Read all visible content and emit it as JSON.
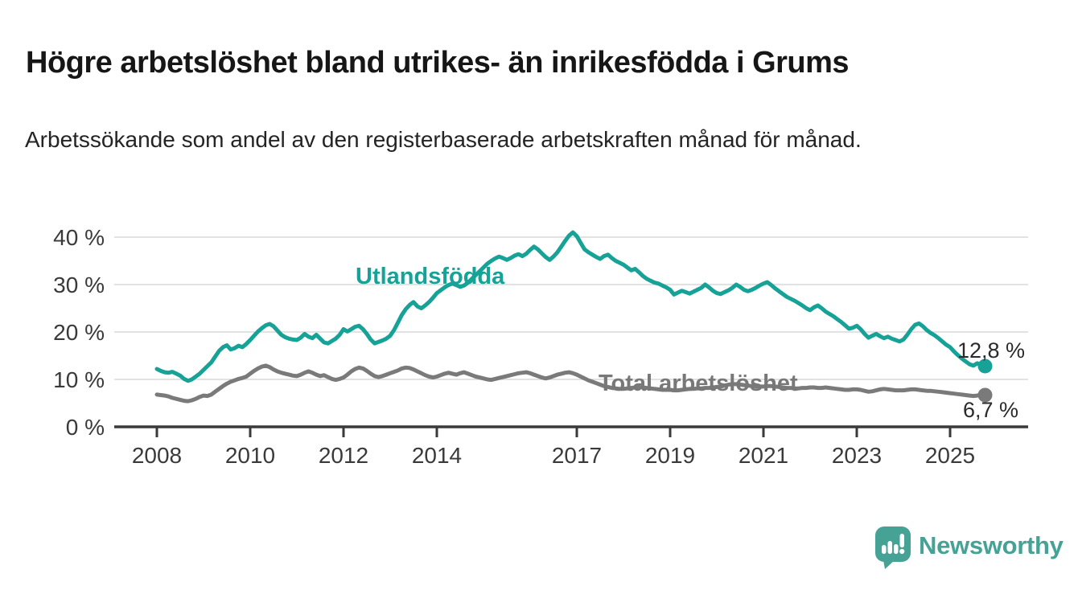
{
  "chart_data": {
    "type": "line",
    "title": "Högre arbetslöshet bland utrikes- än inrikesfödda i Grums",
    "subtitle": "Arbetssökande som andel av den registerbaserade arbetskraften månad för månad.",
    "unit": "%",
    "x_start_year": 2008,
    "frequency": "monthly",
    "x_ticks": [
      2008,
      2010,
      2012,
      2014,
      2017,
      2019,
      2021,
      2023,
      2025
    ],
    "y_ticks": [
      0,
      10,
      20,
      30,
      40
    ],
    "ylim": [
      0,
      43
    ],
    "grid": "horizontal",
    "legend_position": "inline-labels",
    "series": [
      {
        "name": "Utlandsfödda",
        "color": "#16a296",
        "end_label": "12,8 %",
        "end_value": 12.8,
        "values": [
          12.2,
          11.8,
          11.5,
          11.4,
          11.6,
          11.2,
          10.8,
          10.1,
          9.7,
          10.0,
          10.6,
          11.2,
          12.0,
          12.8,
          13.6,
          14.8,
          16.0,
          16.8,
          17.2,
          16.3,
          16.6,
          17.1,
          16.8,
          17.5,
          18.3,
          19.2,
          20.1,
          20.8,
          21.4,
          21.7,
          21.2,
          20.3,
          19.4,
          18.9,
          18.6,
          18.4,
          18.3,
          18.8,
          19.6,
          19.0,
          18.7,
          19.4,
          18.6,
          17.8,
          17.6,
          18.1,
          18.6,
          19.4,
          20.6,
          20.1,
          20.6,
          21.1,
          21.3,
          20.6,
          19.6,
          18.4,
          17.6,
          17.9,
          18.2,
          18.6,
          19.2,
          20.4,
          22.0,
          23.6,
          24.8,
          25.7,
          26.3,
          25.4,
          25.0,
          25.6,
          26.3,
          27.2,
          28.2,
          28.8,
          29.4,
          29.9,
          30.2,
          29.9,
          29.5,
          29.8,
          30.4,
          31.2,
          32.0,
          32.8,
          33.6,
          34.4,
          35.0,
          35.5,
          35.9,
          35.6,
          35.2,
          35.6,
          36.1,
          36.4,
          36.0,
          36.5,
          37.3,
          38.0,
          37.4,
          36.6,
          35.8,
          35.2,
          35.9,
          36.8,
          38.0,
          39.2,
          40.3,
          41.0,
          40.2,
          38.8,
          37.4,
          36.8,
          36.3,
          35.8,
          35.4,
          36.0,
          36.3,
          35.6,
          35.0,
          34.6,
          34.2,
          33.6,
          33.0,
          33.3,
          32.6,
          31.8,
          31.2,
          30.8,
          30.4,
          30.2,
          29.8,
          29.4,
          28.9,
          27.9,
          28.3,
          28.7,
          28.4,
          28.1,
          28.5,
          28.9,
          29.3,
          30.0,
          29.4,
          28.7,
          28.2,
          28.0,
          28.4,
          28.8,
          29.3,
          30.0,
          29.5,
          28.9,
          28.6,
          28.9,
          29.3,
          29.8,
          30.2,
          30.5,
          29.9,
          29.2,
          28.6,
          28.0,
          27.4,
          27.0,
          26.6,
          26.1,
          25.6,
          25.0,
          24.6,
          25.2,
          25.6,
          25.0,
          24.3,
          23.8,
          23.3,
          22.7,
          22.1,
          21.4,
          20.7,
          20.9,
          21.3,
          20.6,
          19.6,
          18.8,
          19.2,
          19.6,
          19.1,
          18.7,
          19.0,
          18.6,
          18.3,
          18.0,
          18.4,
          19.4,
          20.6,
          21.5,
          21.8,
          21.2,
          20.4,
          19.8,
          19.3,
          18.7,
          18.0,
          17.3,
          16.8,
          15.9,
          15.1,
          14.4,
          13.8,
          13.2,
          12.9,
          13.4,
          13.0,
          12.8
        ]
      },
      {
        "name": "Total arbetslöshet",
        "color": "#7a7a7a",
        "end_label": "6,7 %",
        "end_value": 6.7,
        "values": [
          6.8,
          6.7,
          6.6,
          6.4,
          6.1,
          5.9,
          5.7,
          5.5,
          5.4,
          5.6,
          5.9,
          6.3,
          6.6,
          6.5,
          6.8,
          7.4,
          8.0,
          8.6,
          9.1,
          9.5,
          9.8,
          10.1,
          10.3,
          10.6,
          11.2,
          11.8,
          12.3,
          12.7,
          12.9,
          12.6,
          12.1,
          11.7,
          11.4,
          11.2,
          11.0,
          10.8,
          10.7,
          11.0,
          11.4,
          11.7,
          11.4,
          11.0,
          10.7,
          10.9,
          10.5,
          10.1,
          9.9,
          10.1,
          10.4,
          11.0,
          11.7,
          12.2,
          12.5,
          12.3,
          11.8,
          11.2,
          10.7,
          10.5,
          10.7,
          11.0,
          11.3,
          11.6,
          11.9,
          12.3,
          12.5,
          12.4,
          12.1,
          11.7,
          11.3,
          10.9,
          10.6,
          10.4,
          10.6,
          10.9,
          11.2,
          11.4,
          11.2,
          11.0,
          11.3,
          11.5,
          11.2,
          10.9,
          10.6,
          10.4,
          10.2,
          10.0,
          9.9,
          10.1,
          10.3,
          10.5,
          10.7,
          10.9,
          11.1,
          11.3,
          11.4,
          11.5,
          11.3,
          11.0,
          10.7,
          10.4,
          10.2,
          10.4,
          10.7,
          11.0,
          11.2,
          11.4,
          11.5,
          11.3,
          11.0,
          10.6,
          10.2,
          9.8,
          9.5,
          9.2,
          8.9,
          8.6,
          8.4,
          8.2,
          8.1,
          8.0,
          8.0,
          8.1,
          8.2,
          8.3,
          8.4,
          8.3,
          8.2,
          8.1,
          8.0,
          7.9,
          7.8,
          7.8,
          7.8,
          7.7,
          7.7,
          7.8,
          7.9,
          8.0,
          8.0,
          8.1,
          8.1,
          8.2,
          8.2,
          8.3,
          8.4,
          8.5,
          8.7,
          8.9,
          9.0,
          9.0,
          8.9,
          8.8,
          8.7,
          8.6,
          8.5,
          8.5,
          8.5,
          8.6,
          8.6,
          8.5,
          8.4,
          8.3,
          8.2,
          8.2,
          8.1,
          8.1,
          8.2,
          8.2,
          8.3,
          8.3,
          8.2,
          8.2,
          8.3,
          8.2,
          8.1,
          8.0,
          7.9,
          7.8,
          7.8,
          7.9,
          7.9,
          7.8,
          7.6,
          7.4,
          7.5,
          7.7,
          7.9,
          8.0,
          7.9,
          7.8,
          7.7,
          7.7,
          7.7,
          7.8,
          7.9,
          7.9,
          7.8,
          7.7,
          7.6,
          7.6,
          7.5,
          7.4,
          7.3,
          7.2,
          7.1,
          7.0,
          6.9,
          6.8,
          6.7,
          6.6,
          6.5,
          6.6,
          6.8,
          6.7
        ]
      }
    ]
  },
  "footer": {
    "brand": "Newsworthy",
    "brand_color": "#45a295"
  }
}
